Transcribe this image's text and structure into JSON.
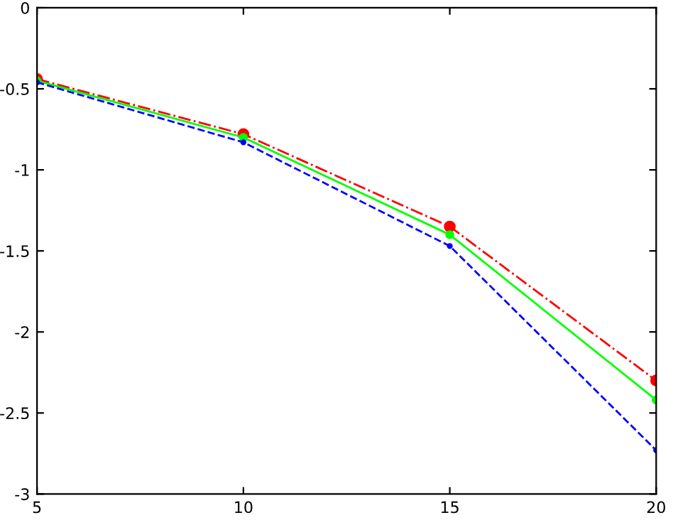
{
  "chart_data": {
    "type": "line",
    "x": [
      5,
      10,
      15,
      20
    ],
    "series": [
      {
        "color": "#ff0000",
        "values": [
          -0.44,
          -0.78,
          -1.35,
          -2.3
        ],
        "line_style": "dashdot",
        "marker": "circle"
      },
      {
        "color": "#00ff00",
        "values": [
          -0.45,
          -0.8,
          -1.4,
          -2.42
        ],
        "line_style": "solid",
        "marker": "circle"
      },
      {
        "color": "#0000ff",
        "values": [
          -0.46,
          -0.83,
          -1.47,
          -2.73
        ],
        "line_style": "dashed",
        "marker": "circle"
      }
    ],
    "xlim": [
      5,
      20
    ],
    "xticks": [
      5,
      10,
      15,
      20
    ],
    "ylim": [
      -3,
      0
    ],
    "yticks": [
      -3,
      -2.5,
      -2,
      -1.5,
      -1,
      -0.5,
      0
    ],
    "grid": false,
    "legend": false
  }
}
